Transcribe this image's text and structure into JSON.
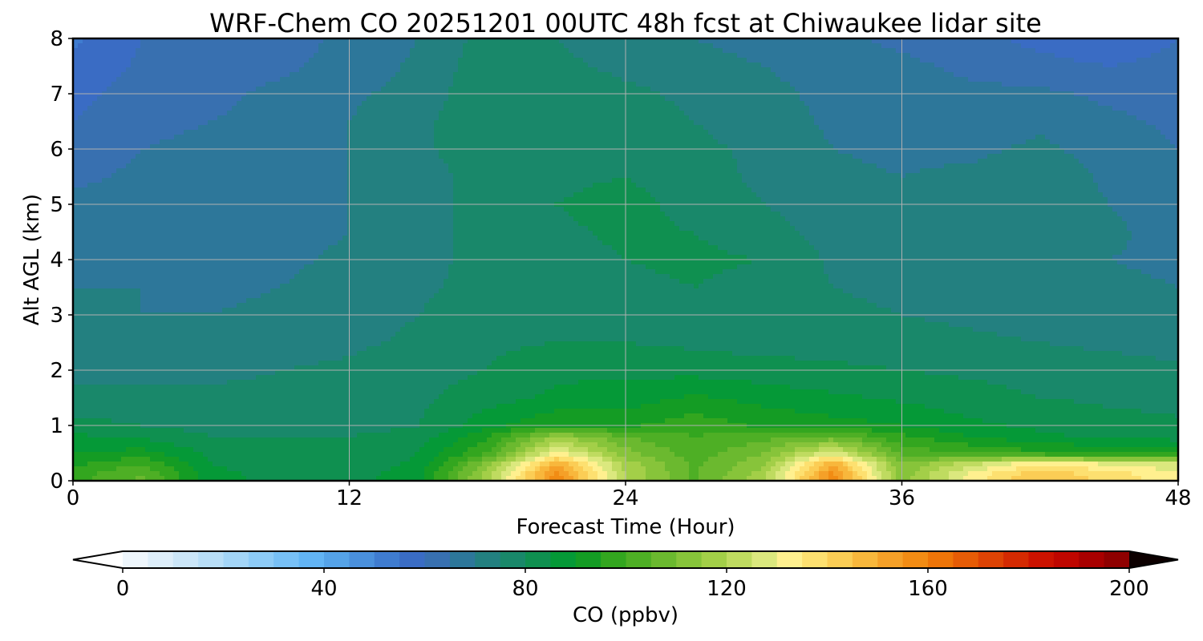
{
  "chart_data": {
    "type": "heatmap",
    "title": "WRF-Chem CO  20251201 00UTC 48h fcst at Chiwaukee lidar site",
    "xlabel": "Forecast Time (Hour)",
    "ylabel": "Alt AGL (km)",
    "xlim": [
      0,
      48
    ],
    "ylim": [
      0,
      8
    ],
    "xticks": [
      0,
      12,
      24,
      36,
      48
    ],
    "yticks": [
      0,
      1,
      2,
      3,
      4,
      5,
      6,
      7,
      8
    ],
    "grid": true,
    "colorbar": {
      "label": "CO  (ppbv)",
      "min": 0,
      "max": 200,
      "step": 5,
      "ticks": [
        0,
        40,
        80,
        120,
        160,
        200
      ],
      "extend": "both",
      "orientation": "horizontal",
      "colors": [
        "#ffffff",
        "#eef6fc",
        "#ddeefa",
        "#cbe6f8",
        "#b8def7",
        "#a3d5f7",
        "#8dcbf7",
        "#77c0f6",
        "#62b4f4",
        "#55a3e8",
        "#4a90dc",
        "#3f7cd0",
        "#3a6cc4",
        "#3870b0",
        "#2d779a",
        "#238080",
        "#19886a",
        "#0f9050",
        "#059937",
        "#149c24",
        "#33a61f",
        "#4eaf25",
        "#6bb92f",
        "#87c43a",
        "#a3cf48",
        "#bfdb60",
        "#dbe87e",
        "#fff08f",
        "#fde070",
        "#fbcd55",
        "#f8b73c",
        "#f5a028",
        "#f28c14",
        "#ee7508",
        "#e65c06",
        "#dd4304",
        "#d42a02",
        "#cc1200",
        "#bf0600",
        "#a80000",
        "#8f0000",
        "#760000",
        "#5c0000",
        "#420000",
        "#2e0000",
        "#1c0000",
        "#0c0000"
      ]
    },
    "x": [
      0,
      3,
      6,
      9,
      12,
      15,
      18,
      21,
      24,
      27,
      30,
      33,
      36,
      39,
      42,
      45,
      48
    ],
    "y": [
      0.1,
      0.3,
      0.5,
      0.8,
      1.0,
      1.5,
      2.0,
      2.5,
      3.0,
      3.5,
      4.0,
      4.5,
      5.0,
      5.5,
      6.0,
      6.5,
      7.0,
      7.5,
      8.0
    ],
    "z": [
      [
        98,
        106,
        86,
        84,
        83,
        88,
        118,
        158,
        120,
        104,
        118,
        158,
        112,
        132,
        145,
        138,
        132
      ],
      [
        94,
        100,
        85,
        83,
        82,
        86,
        112,
        150,
        118,
        104,
        114,
        150,
        110,
        124,
        135,
        130,
        126
      ],
      [
        90,
        92,
        84,
        82,
        82,
        85,
        100,
        132,
        112,
        102,
        110,
        128,
        103,
        100,
        96,
        94,
        92
      ],
      [
        86,
        84,
        80,
        80,
        80,
        82,
        94,
        115,
        105,
        100,
        103,
        106,
        96,
        90,
        86,
        84,
        83
      ],
      [
        82,
        80,
        78,
        78,
        78,
        80,
        88,
        95,
        94,
        98,
        94,
        92,
        90,
        86,
        84,
        82,
        81
      ],
      [
        76,
        76,
        76,
        76,
        77,
        79,
        83,
        86,
        87,
        91,
        88,
        86,
        84,
        82,
        80,
        79,
        78
      ],
      [
        74,
        74,
        74,
        75,
        76,
        78,
        80,
        84,
        84,
        83,
        82,
        81,
        80,
        79,
        78,
        77,
        76
      ],
      [
        72,
        72,
        72,
        73,
        74,
        76,
        79,
        80,
        80,
        79,
        78,
        78,
        77,
        76,
        75,
        74,
        73
      ],
      [
        72,
        70,
        70,
        71,
        73,
        75,
        78,
        79,
        79,
        78,
        77,
        76,
        75,
        74,
        73,
        72,
        72
      ],
      [
        70,
        70,
        69,
        70,
        72,
        74,
        77,
        78,
        79,
        80,
        78,
        75,
        74,
        73,
        72,
        71,
        70
      ],
      [
        69,
        69,
        68,
        69,
        71,
        73,
        77,
        78,
        80,
        81,
        80,
        74,
        73,
        73,
        72,
        70,
        69
      ],
      [
        68,
        68,
        67,
        68,
        70,
        73,
        77,
        79,
        81,
        80,
        77,
        73,
        72,
        73,
        74,
        71,
        68
      ],
      [
        66,
        67,
        67,
        68,
        70,
        73,
        77,
        80,
        82,
        78,
        75,
        72,
        71,
        72,
        74,
        70,
        67
      ],
      [
        64,
        66,
        66,
        67,
        70,
        73,
        77,
        79,
        80,
        77,
        74,
        71,
        70,
        71,
        73,
        69,
        66
      ],
      [
        62,
        65,
        66,
        67,
        70,
        74,
        78,
        78,
        79,
        76,
        74,
        70,
        69,
        69,
        71,
        68,
        65
      ],
      [
        60,
        64,
        65,
        66,
        70,
        74,
        78,
        77,
        77,
        75,
        73,
        69,
        68,
        67,
        69,
        66,
        64
      ],
      [
        58,
        63,
        64,
        66,
        69,
        72,
        79,
        77,
        76,
        74,
        72,
        68,
        67,
        66,
        66,
        64,
        63
      ],
      [
        56,
        61,
        63,
        64,
        67,
        71,
        78,
        76,
        74,
        72,
        70,
        67,
        66,
        64,
        62,
        60,
        62
      ],
      [
        54,
        60,
        62,
        63,
        66,
        70,
        77,
        75,
        72,
        70,
        68,
        66,
        64,
        62,
        58,
        55,
        60
      ]
    ]
  }
}
